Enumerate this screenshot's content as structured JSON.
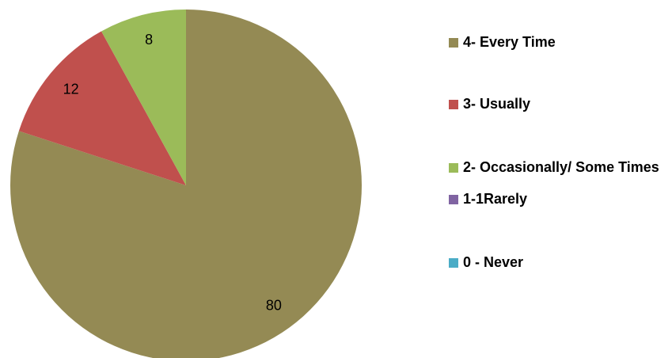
{
  "chart_data": {
    "type": "pie",
    "categories": [
      "4- Every Time",
      "3- Usually",
      "2- Occasionally/ Some Times",
      "1-1Rarely",
      "0 - Never"
    ],
    "values": [
      80,
      12,
      8,
      0,
      0
    ],
    "colors": [
      "#948a54",
      "#c0504d",
      "#9bbb59",
      "#8064a2",
      "#4bacc6"
    ],
    "legend": "right"
  }
}
